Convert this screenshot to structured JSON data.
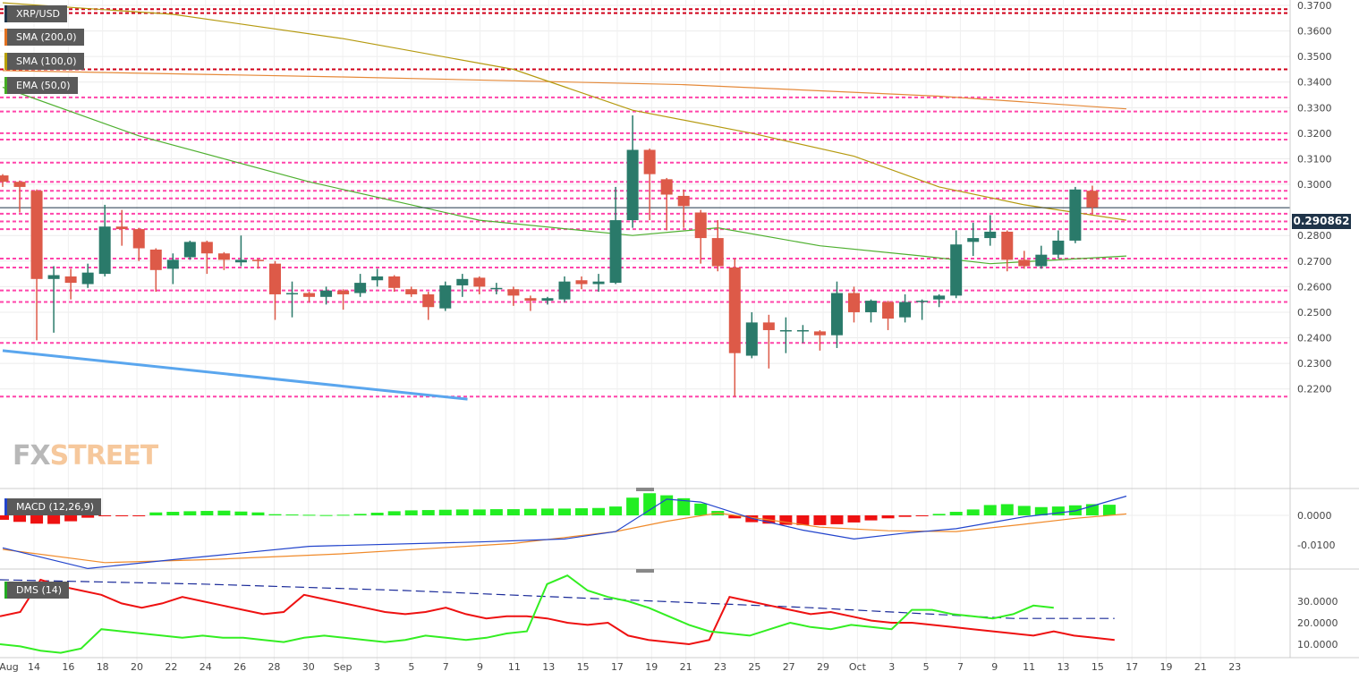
{
  "labels": {
    "symbol": "XRP/USD",
    "sma200": "SMA (200,0)",
    "sma100": "SMA (100,0)",
    "ema50": "EMA (50,0)",
    "macd": "MACD (12,26,9)",
    "dms": "DMS (14)",
    "price_tag": "0.290862",
    "logo_fx": "FX",
    "logo_street": "STREET"
  },
  "chart_data": {
    "type": "candlestick",
    "price_axis": {
      "ticks": [
        "0.3700",
        "0.3600",
        "0.3500",
        "0.3400",
        "0.3300",
        "0.3200",
        "0.3100",
        "0.3000",
        "0.2800",
        "0.2700",
        "0.2600",
        "0.2500",
        "0.2400",
        "0.2300",
        "0.2200"
      ],
      "range": [
        0.215,
        0.371
      ]
    },
    "x_ticks": [
      "Aug",
      "14",
      "16",
      "18",
      "20",
      "22",
      "24",
      "26",
      "28",
      "30",
      "Sep",
      "3",
      "5",
      "7",
      "9",
      "11",
      "13",
      "15",
      "17",
      "19",
      "21",
      "23",
      "25",
      "27",
      "29",
      "Oct",
      "3",
      "5",
      "7",
      "9",
      "11",
      "13",
      "15",
      "17",
      "19",
      "21",
      "23"
    ],
    "current_price": 0.290862,
    "candles": [
      {
        "o": 0.3035,
        "h": 0.304,
        "l": 0.299,
        "c": 0.301
      },
      {
        "o": 0.301,
        "h": 0.3015,
        "l": 0.289,
        "c": 0.299
      },
      {
        "o": 0.2975,
        "h": 0.298,
        "l": 0.239,
        "c": 0.263
      },
      {
        "o": 0.263,
        "h": 0.268,
        "l": 0.242,
        "c": 0.2645
      },
      {
        "o": 0.264,
        "h": 0.267,
        "l": 0.255,
        "c": 0.2615
      },
      {
        "o": 0.261,
        "h": 0.269,
        "l": 0.2595,
        "c": 0.2655
      },
      {
        "o": 0.265,
        "h": 0.292,
        "l": 0.264,
        "c": 0.2835
      },
      {
        "o": 0.2835,
        "h": 0.29,
        "l": 0.276,
        "c": 0.2825
      },
      {
        "o": 0.2825,
        "h": 0.283,
        "l": 0.27,
        "c": 0.275
      },
      {
        "o": 0.2745,
        "h": 0.275,
        "l": 0.258,
        "c": 0.2665
      },
      {
        "o": 0.267,
        "h": 0.273,
        "l": 0.261,
        "c": 0.2705
      },
      {
        "o": 0.2715,
        "h": 0.278,
        "l": 0.2705,
        "c": 0.2775
      },
      {
        "o": 0.2775,
        "h": 0.278,
        "l": 0.265,
        "c": 0.273
      },
      {
        "o": 0.273,
        "h": 0.2735,
        "l": 0.2665,
        "c": 0.2705
      },
      {
        "o": 0.2695,
        "h": 0.28,
        "l": 0.268,
        "c": 0.2705
      },
      {
        "o": 0.2705,
        "h": 0.271,
        "l": 0.267,
        "c": 0.27
      },
      {
        "o": 0.269,
        "h": 0.27,
        "l": 0.247,
        "c": 0.257
      },
      {
        "o": 0.257,
        "h": 0.262,
        "l": 0.248,
        "c": 0.2575
      },
      {
        "o": 0.2575,
        "h": 0.258,
        "l": 0.254,
        "c": 0.256
      },
      {
        "o": 0.256,
        "h": 0.26,
        "l": 0.253,
        "c": 0.2585
      },
      {
        "o": 0.2585,
        "h": 0.259,
        "l": 0.251,
        "c": 0.257
      },
      {
        "o": 0.2575,
        "h": 0.265,
        "l": 0.256,
        "c": 0.2615
      },
      {
        "o": 0.2625,
        "h": 0.267,
        "l": 0.26,
        "c": 0.264
      },
      {
        "o": 0.264,
        "h": 0.2645,
        "l": 0.258,
        "c": 0.2595
      },
      {
        "o": 0.259,
        "h": 0.26,
        "l": 0.256,
        "c": 0.257
      },
      {
        "o": 0.257,
        "h": 0.258,
        "l": 0.247,
        "c": 0.252
      },
      {
        "o": 0.2515,
        "h": 0.262,
        "l": 0.2505,
        "c": 0.2605
      },
      {
        "o": 0.2605,
        "h": 0.265,
        "l": 0.256,
        "c": 0.263
      },
      {
        "o": 0.2635,
        "h": 0.264,
        "l": 0.257,
        "c": 0.26
      },
      {
        "o": 0.259,
        "h": 0.2615,
        "l": 0.257,
        "c": 0.2595
      },
      {
        "o": 0.259,
        "h": 0.26,
        "l": 0.2525,
        "c": 0.2565
      },
      {
        "o": 0.2555,
        "h": 0.2565,
        "l": 0.2505,
        "c": 0.2545
      },
      {
        "o": 0.2545,
        "h": 0.256,
        "l": 0.253,
        "c": 0.2555
      },
      {
        "o": 0.255,
        "h": 0.264,
        "l": 0.254,
        "c": 0.262
      },
      {
        "o": 0.2625,
        "h": 0.264,
        "l": 0.259,
        "c": 0.261
      },
      {
        "o": 0.261,
        "h": 0.265,
        "l": 0.258,
        "c": 0.262
      },
      {
        "o": 0.2615,
        "h": 0.299,
        "l": 0.261,
        "c": 0.286
      },
      {
        "o": 0.286,
        "h": 0.327,
        "l": 0.283,
        "c": 0.3135
      },
      {
        "o": 0.3135,
        "h": 0.314,
        "l": 0.286,
        "c": 0.304
      },
      {
        "o": 0.302,
        "h": 0.3025,
        "l": 0.282,
        "c": 0.296
      },
      {
        "o": 0.2955,
        "h": 0.298,
        "l": 0.283,
        "c": 0.2915
      },
      {
        "o": 0.289,
        "h": 0.29,
        "l": 0.269,
        "c": 0.279
      },
      {
        "o": 0.279,
        "h": 0.286,
        "l": 0.266,
        "c": 0.268
      },
      {
        "o": 0.2675,
        "h": 0.271,
        "l": 0.217,
        "c": 0.234
      },
      {
        "o": 0.233,
        "h": 0.25,
        "l": 0.232,
        "c": 0.246
      },
      {
        "o": 0.246,
        "h": 0.249,
        "l": 0.228,
        "c": 0.243
      },
      {
        "o": 0.243,
        "h": 0.248,
        "l": 0.234,
        "c": 0.243
      },
      {
        "o": 0.243,
        "h": 0.245,
        "l": 0.238,
        "c": 0.243
      },
      {
        "o": 0.2425,
        "h": 0.243,
        "l": 0.235,
        "c": 0.241
      },
      {
        "o": 0.241,
        "h": 0.262,
        "l": 0.236,
        "c": 0.2575
      },
      {
        "o": 0.2575,
        "h": 0.26,
        "l": 0.246,
        "c": 0.25
      },
      {
        "o": 0.25,
        "h": 0.255,
        "l": 0.246,
        "c": 0.2545
      },
      {
        "o": 0.254,
        "h": 0.2545,
        "l": 0.243,
        "c": 0.2475
      },
      {
        "o": 0.248,
        "h": 0.257,
        "l": 0.246,
        "c": 0.254
      },
      {
        "o": 0.254,
        "h": 0.255,
        "l": 0.247,
        "c": 0.2545
      },
      {
        "o": 0.255,
        "h": 0.257,
        "l": 0.252,
        "c": 0.2565
      },
      {
        "o": 0.2565,
        "h": 0.282,
        "l": 0.2555,
        "c": 0.2765
      },
      {
        "o": 0.2775,
        "h": 0.285,
        "l": 0.272,
        "c": 0.279
      },
      {
        "o": 0.279,
        "h": 0.288,
        "l": 0.276,
        "c": 0.2815
      },
      {
        "o": 0.2815,
        "h": 0.282,
        "l": 0.266,
        "c": 0.2705
      },
      {
        "o": 0.2705,
        "h": 0.274,
        "l": 0.267,
        "c": 0.268
      },
      {
        "o": 0.268,
        "h": 0.276,
        "l": 0.267,
        "c": 0.2725
      },
      {
        "o": 0.2725,
        "h": 0.282,
        "l": 0.271,
        "c": 0.278
      },
      {
        "o": 0.278,
        "h": 0.299,
        "l": 0.277,
        "c": 0.298
      },
      {
        "o": 0.2975,
        "h": 0.2995,
        "l": 0.2885,
        "c": 0.291
      }
    ],
    "horizontal_levels": [
      {
        "value": 0.3685,
        "color": "#d0001a"
      },
      {
        "value": 0.367,
        "color": "#d0001a"
      },
      {
        "value": 0.345,
        "color": "#d0001a"
      },
      {
        "value": 0.334,
        "color": "#ff44aa"
      },
      {
        "value": 0.3285,
        "color": "#ff44aa"
      },
      {
        "value": 0.32,
        "color": "#ff44aa"
      },
      {
        "value": 0.3175,
        "color": "#ff44aa"
      },
      {
        "value": 0.3085,
        "color": "#ff44aa"
      },
      {
        "value": 0.301,
        "color": "#ff44aa"
      },
      {
        "value": 0.2975,
        "color": "#ff44aa"
      },
      {
        "value": 0.2945,
        "color": "#ff44aa"
      },
      {
        "value": 0.2885,
        "color": "#ff44aa"
      },
      {
        "value": 0.2855,
        "color": "#ff44aa"
      },
      {
        "value": 0.2825,
        "color": "#ff44aa"
      },
      {
        "value": 0.271,
        "color": "#ff44aa"
      },
      {
        "value": 0.2675,
        "color": "#ff44aa"
      },
      {
        "value": 0.2585,
        "color": "#ff44aa"
      },
      {
        "value": 0.254,
        "color": "#ff44aa"
      },
      {
        "value": 0.238,
        "color": "#ff44aa"
      },
      {
        "value": 0.217,
        "color": "#ff44aa"
      }
    ],
    "sma200": [
      [
        0,
        0.3445
      ],
      [
        20,
        0.342
      ],
      [
        40,
        0.339
      ],
      [
        55,
        0.3345
      ],
      [
        66,
        0.3295
      ]
    ],
    "sma100": [
      [
        0,
        0.371
      ],
      [
        10,
        0.3665
      ],
      [
        20,
        0.357
      ],
      [
        30,
        0.345
      ],
      [
        37,
        0.329
      ],
      [
        44,
        0.32
      ],
      [
        50,
        0.311
      ],
      [
        55,
        0.299
      ],
      [
        60,
        0.292
      ],
      [
        66,
        0.286
      ]
    ],
    "ema50": [
      [
        0,
        0.338
      ],
      [
        8,
        0.319
      ],
      [
        18,
        0.301
      ],
      [
        28,
        0.286
      ],
      [
        37,
        0.28
      ],
      [
        42,
        0.283
      ],
      [
        48,
        0.276
      ],
      [
        54,
        0.272
      ],
      [
        58,
        0.269
      ],
      [
        62,
        0.2705
      ],
      [
        66,
        0.272
      ]
    ],
    "trendline": {
      "from": [
        0,
        0.235
      ],
      "to": [
        27.3,
        0.216
      ],
      "color": "#5aa6ee"
    },
    "macd_axis": {
      "ticks": [
        "0.0000",
        "-0.0100"
      ]
    },
    "macd_histogram": [
      -0.0015,
      -0.0022,
      -0.0028,
      -0.0029,
      -0.002,
      -0.0008,
      -0.0003,
      -0.0002,
      -0.0001,
      0.001,
      0.0012,
      0.0014,
      0.0015,
      0.0016,
      0.0013,
      0.001,
      0.0004,
      0.0003,
      0.0002,
      0.0001,
      0.0002,
      0.0005,
      0.0009,
      0.0014,
      0.0017,
      0.0018,
      0.0019,
      0.002,
      0.002,
      0.0021,
      0.0021,
      0.0022,
      0.0023,
      0.0023,
      0.0024,
      0.0025,
      0.003,
      0.006,
      0.0075,
      0.0068,
      0.0058,
      0.004,
      0.0015,
      -0.001,
      -0.0023,
      -0.0028,
      -0.0032,
      -0.0033,
      -0.0033,
      -0.003,
      -0.0024,
      -0.0017,
      -0.001,
      -0.0005,
      -0.0001,
      0.0005,
      0.0012,
      0.002,
      0.0035,
      0.0038,
      0.0032,
      0.0028,
      0.003,
      0.0034,
      0.0038,
      0.0036
    ],
    "macd_line": [
      [
        0,
        -0.011
      ],
      [
        5,
        -0.018
      ],
      [
        10,
        -0.015
      ],
      [
        18,
        -0.0105
      ],
      [
        28,
        -0.009
      ],
      [
        33,
        -0.008
      ],
      [
        36,
        -0.0055
      ],
      [
        39,
        0.0055
      ],
      [
        41,
        0.0045
      ],
      [
        44,
        -0.001
      ],
      [
        47,
        -0.005
      ],
      [
        50,
        -0.008
      ],
      [
        53,
        -0.006
      ],
      [
        56,
        -0.0045
      ],
      [
        60,
        -0.0005
      ],
      [
        63,
        0.0015
      ],
      [
        66,
        0.0065
      ]
    ],
    "signal_line": [
      [
        0,
        -0.0115
      ],
      [
        6,
        -0.016
      ],
      [
        12,
        -0.015
      ],
      [
        20,
        -0.013
      ],
      [
        30,
        -0.0095
      ],
      [
        36,
        -0.0055
      ],
      [
        39,
        -0.002
      ],
      [
        42,
        0.0008
      ],
      [
        45,
        -0.0015
      ],
      [
        48,
        -0.004
      ],
      [
        52,
        -0.0052
      ],
      [
        56,
        -0.0055
      ],
      [
        60,
        -0.003
      ],
      [
        63,
        -0.001
      ],
      [
        66,
        0.0005
      ]
    ],
    "dms_axis": {
      "ticks": [
        "30.0000",
        "20.0000",
        "10.0000"
      ]
    },
    "dms_red": [
      [
        0,
        23
      ],
      [
        1,
        25
      ],
      [
        2,
        40
      ],
      [
        3,
        37
      ],
      [
        4,
        35
      ],
      [
        5,
        33
      ],
      [
        6,
        29
      ],
      [
        7,
        27
      ],
      [
        8,
        29
      ],
      [
        9,
        32
      ],
      [
        10,
        30
      ],
      [
        11,
        28
      ],
      [
        12,
        26
      ],
      [
        13,
        24
      ],
      [
        14,
        25
      ],
      [
        15,
        33
      ],
      [
        16,
        31
      ],
      [
        17,
        29
      ],
      [
        18,
        27
      ],
      [
        19,
        25
      ],
      [
        20,
        24
      ],
      [
        21,
        25
      ],
      [
        22,
        27
      ],
      [
        23,
        24
      ],
      [
        24,
        22
      ],
      [
        25,
        23
      ],
      [
        26,
        23
      ],
      [
        27,
        22
      ],
      [
        28,
        20
      ],
      [
        29,
        19
      ],
      [
        30,
        20
      ],
      [
        31,
        14
      ],
      [
        32,
        12
      ],
      [
        33,
        11
      ],
      [
        34,
        10
      ],
      [
        35,
        12
      ],
      [
        36,
        32
      ],
      [
        37,
        30
      ],
      [
        38,
        28
      ],
      [
        39,
        26
      ],
      [
        40,
        24
      ],
      [
        41,
        25
      ],
      [
        42,
        23
      ],
      [
        43,
        21
      ],
      [
        44,
        20
      ],
      [
        45,
        20
      ],
      [
        46,
        19
      ],
      [
        47,
        18
      ],
      [
        48,
        17
      ],
      [
        49,
        16
      ],
      [
        50,
        15
      ],
      [
        51,
        14
      ],
      [
        52,
        16
      ],
      [
        53,
        14
      ],
      [
        54,
        13
      ],
      [
        55,
        12
      ]
    ],
    "dms_green": [
      [
        0,
        10
      ],
      [
        1,
        9
      ],
      [
        2,
        7
      ],
      [
        3,
        6
      ],
      [
        4,
        8
      ],
      [
        5,
        17
      ],
      [
        6,
        16
      ],
      [
        7,
        15
      ],
      [
        8,
        14
      ],
      [
        9,
        13
      ],
      [
        10,
        14
      ],
      [
        11,
        13
      ],
      [
        12,
        13
      ],
      [
        13,
        12
      ],
      [
        14,
        11
      ],
      [
        15,
        13
      ],
      [
        16,
        14
      ],
      [
        17,
        13
      ],
      [
        18,
        12
      ],
      [
        19,
        11
      ],
      [
        20,
        12
      ],
      [
        21,
        14
      ],
      [
        22,
        13
      ],
      [
        23,
        12
      ],
      [
        24,
        13
      ],
      [
        25,
        15
      ],
      [
        26,
        16
      ],
      [
        27,
        38
      ],
      [
        28,
        42
      ],
      [
        29,
        35
      ],
      [
        30,
        32
      ],
      [
        31,
        30
      ],
      [
        32,
        27
      ],
      [
        33,
        23
      ],
      [
        34,
        19
      ],
      [
        35,
        16
      ],
      [
        36,
        15
      ],
      [
        37,
        14
      ],
      [
        38,
        17
      ],
      [
        39,
        20
      ],
      [
        40,
        18
      ],
      [
        41,
        17
      ],
      [
        42,
        19
      ],
      [
        43,
        18
      ],
      [
        44,
        17
      ],
      [
        45,
        26
      ],
      [
        46,
        26
      ],
      [
        47,
        24
      ],
      [
        48,
        23
      ],
      [
        49,
        22
      ],
      [
        50,
        24
      ],
      [
        51,
        28
      ],
      [
        52,
        27
      ]
    ],
    "dms_blue": [
      [
        0,
        40
      ],
      [
        10,
        38
      ],
      [
        20,
        35
      ],
      [
        30,
        31
      ],
      [
        40,
        27
      ],
      [
        50,
        22
      ],
      [
        55,
        22
      ]
    ]
  }
}
